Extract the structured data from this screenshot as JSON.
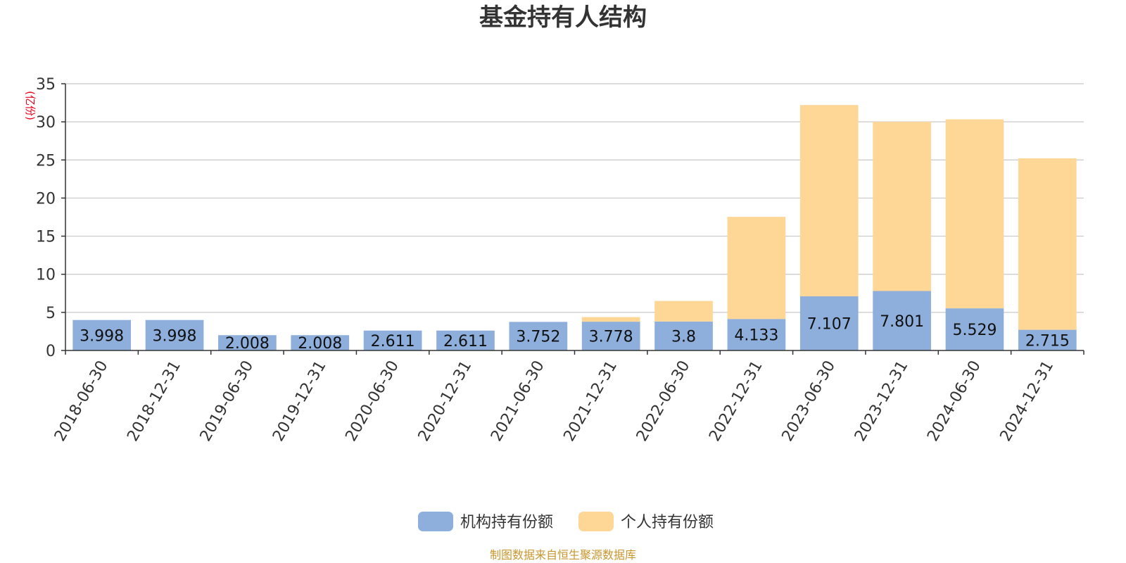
{
  "colors": {
    "institution": "#8eaedc",
    "individual": "#fed796",
    "unit_label": "#e8001c",
    "source_text": "#c8962d",
    "grid": "#c8c8c8",
    "axis": "#333333"
  },
  "source": "制图数据来自恒生聚源数据库",
  "chart_data": {
    "type": "bar",
    "stacked": true,
    "title": "基金持有人结构",
    "ylabel": "(亿份)",
    "xlabel": "",
    "ylim": [
      0,
      35
    ],
    "yticks": [
      0,
      5,
      10,
      15,
      20,
      25,
      30,
      35
    ],
    "grid": true,
    "legend_position": "bottom-center",
    "categories": [
      "2018-06-30",
      "2018-12-31",
      "2019-06-30",
      "2019-12-31",
      "2020-06-30",
      "2020-12-31",
      "2021-06-30",
      "2021-12-31",
      "2022-06-30",
      "2022-12-31",
      "2023-06-30",
      "2023-12-31",
      "2024-06-30",
      "2024-12-31"
    ],
    "series": [
      {
        "name": "机构持有份额",
        "color": "#8eaedc",
        "values": [
          3.998,
          3.998,
          2.008,
          2.008,
          2.611,
          2.611,
          3.752,
          3.778,
          3.8,
          4.133,
          7.107,
          7.801,
          5.529,
          2.715
        ],
        "data_labels": [
          "3.998",
          "3.998",
          "2.008",
          "2.008",
          "2.611",
          "2.611",
          "3.752",
          "3.778",
          "3.8",
          "4.133",
          "7.107",
          "7.801",
          "5.529",
          "2.715"
        ]
      },
      {
        "name": "个人持有份额",
        "color": "#fed796",
        "values": [
          0,
          0,
          0,
          0,
          0,
          0,
          0,
          0.6,
          2.7,
          13.4,
          25.1,
          22.2,
          24.8,
          22.5
        ]
      }
    ]
  }
}
